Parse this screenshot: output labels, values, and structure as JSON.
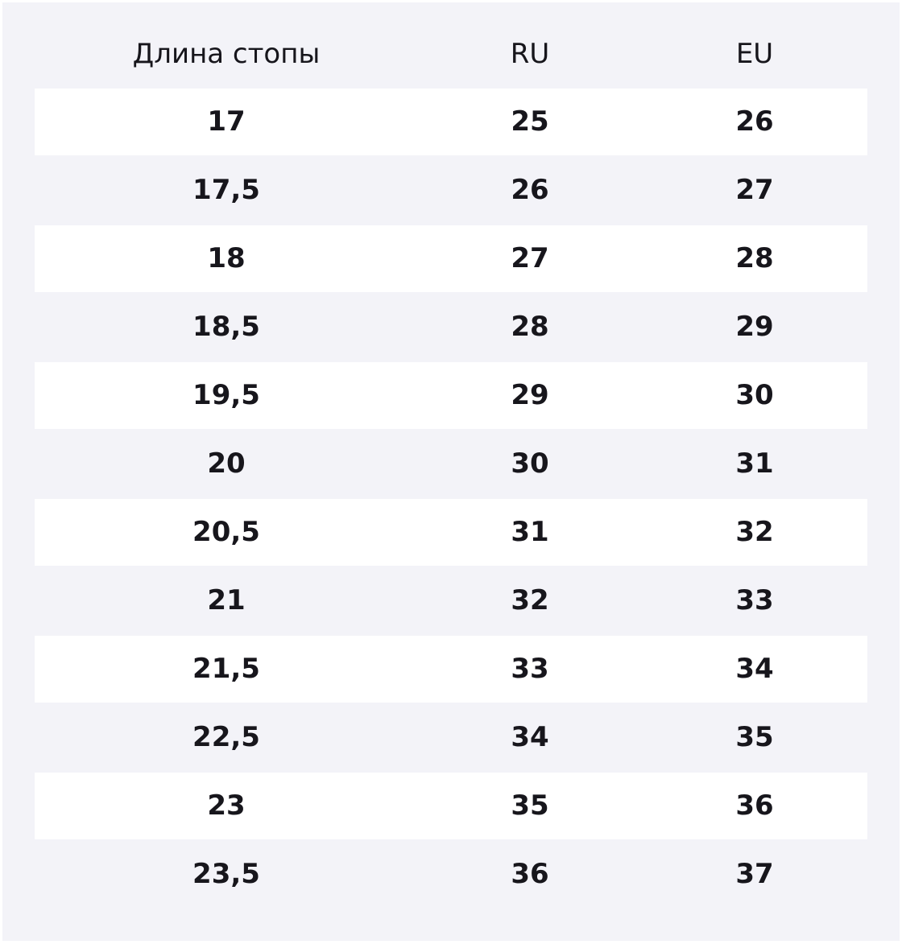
{
  "table": {
    "header": [
      "Длина стопы",
      "RU",
      "EU"
    ],
    "rows": [
      [
        "17",
        "25",
        "26"
      ],
      [
        "17,5",
        "26",
        "27"
      ],
      [
        "18",
        "27",
        "28"
      ],
      [
        "18,5",
        "28",
        "29"
      ],
      [
        "19,5",
        "29",
        "30"
      ],
      [
        "20",
        "30",
        "31"
      ],
      [
        "20,5",
        "31",
        "32"
      ],
      [
        "21",
        "32",
        "33"
      ],
      [
        "21,5",
        "33",
        "34"
      ],
      [
        "22,5",
        "34",
        "35"
      ],
      [
        "23",
        "35",
        "36"
      ],
      [
        "23,5",
        "36",
        "37"
      ]
    ]
  }
}
